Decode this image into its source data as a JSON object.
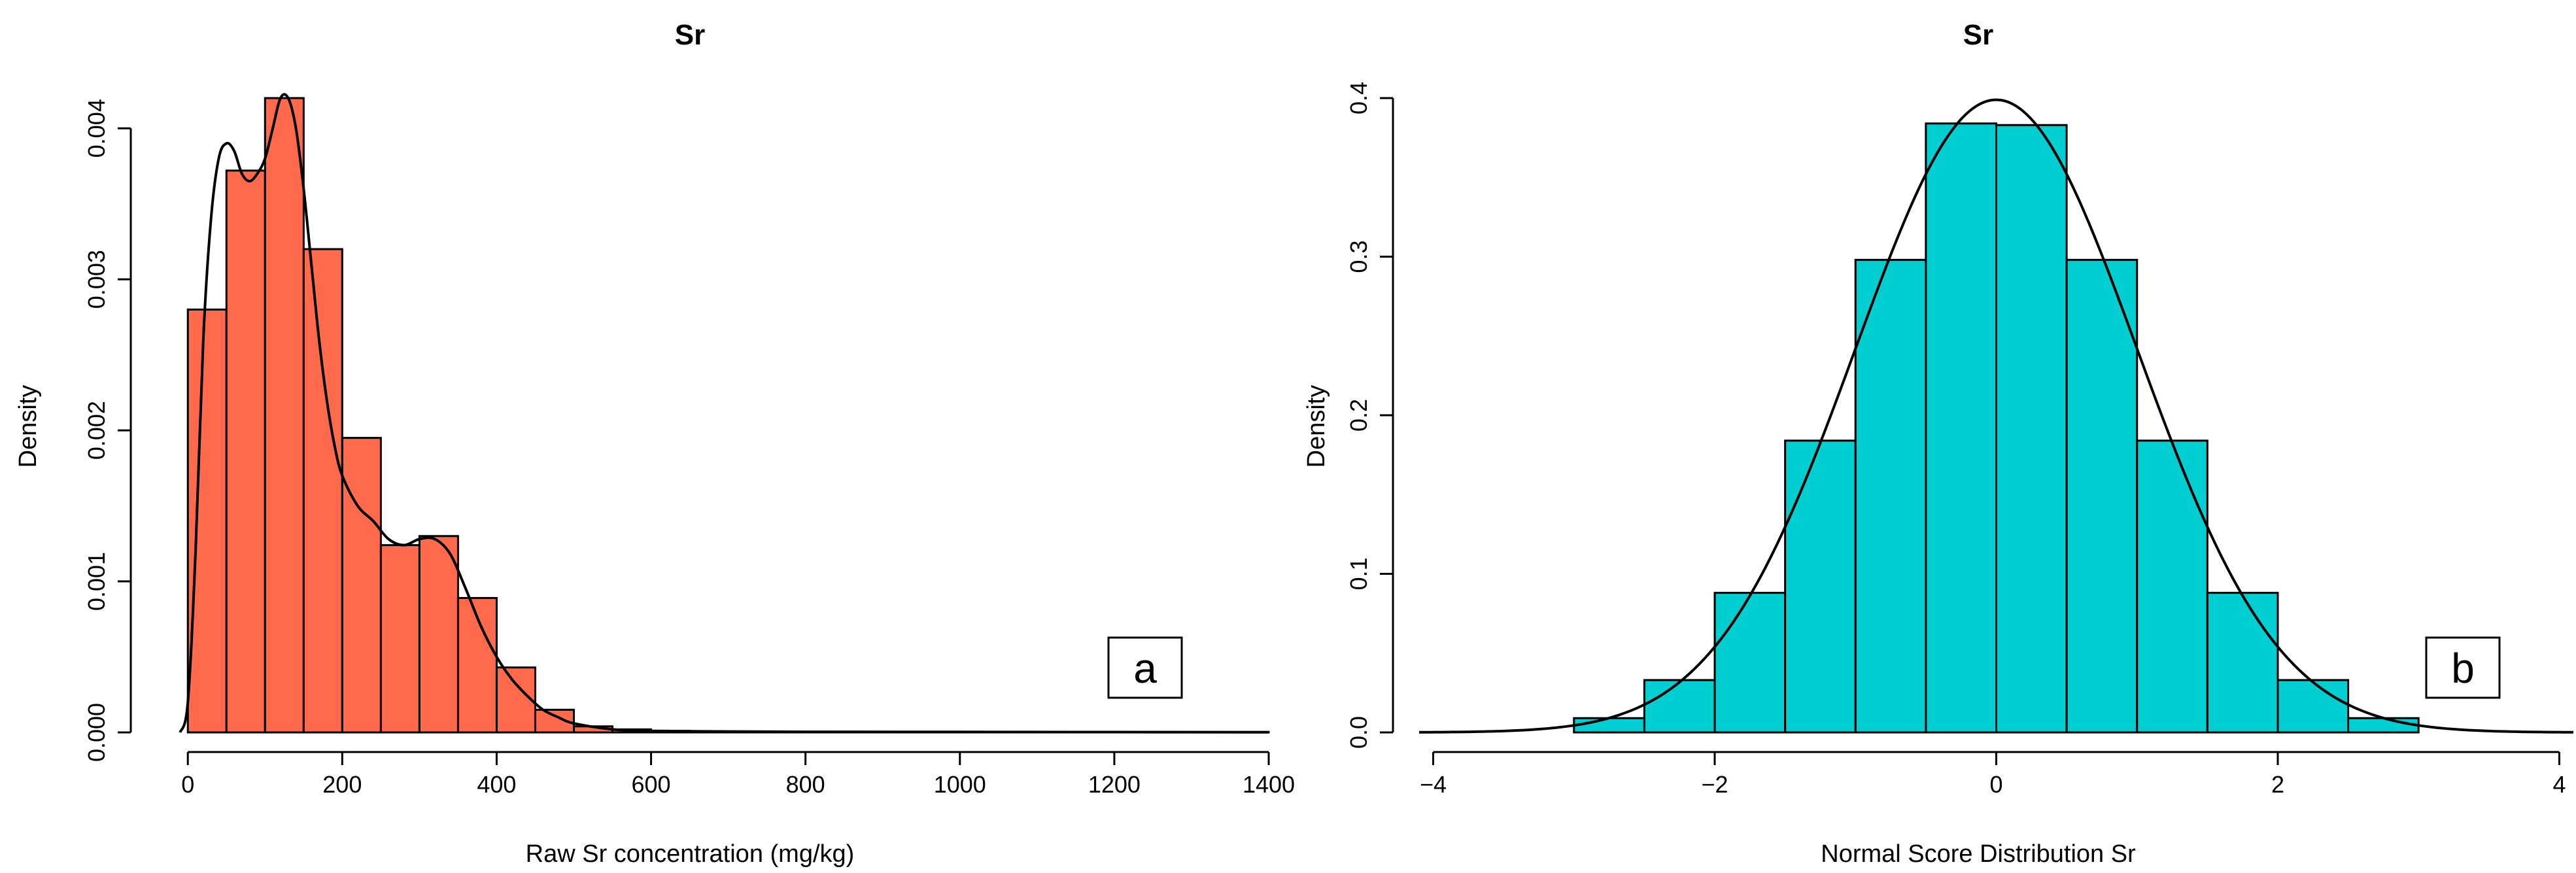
{
  "chart_data": [
    {
      "type": "bar",
      "panel_label": "a",
      "title": "Sr",
      "xlabel": "Raw Sr concentration (mg/kg)",
      "ylabel": "Density",
      "xlim": [
        -40,
        1400
      ],
      "ylim": [
        0,
        0.0042
      ],
      "xticks": [
        0,
        200,
        400,
        600,
        800,
        1000,
        1200,
        1400
      ],
      "xtick_labels": [
        "0",
        "200",
        "400",
        "600",
        "800",
        "1000",
        "1200",
        "1400"
      ],
      "yticks": [
        0,
        0.001,
        0.002,
        0.003,
        0.004
      ],
      "ytick_labels": [
        "0.000",
        "0.001",
        "0.002",
        "0.003",
        "0.004"
      ],
      "bar_color": "#FF6A4D",
      "bin_width": 50,
      "bin_starts": [
        0,
        50,
        100,
        150,
        200,
        250,
        300,
        350,
        400,
        450,
        500,
        550,
        600,
        650,
        700,
        750,
        800,
        850,
        900,
        950,
        1000,
        1050,
        1100,
        1150,
        1200,
        1250,
        1300,
        1350
      ],
      "values": [
        0.0028,
        0.00372,
        0.0042,
        0.0032,
        0.00195,
        0.00124,
        0.0013,
        0.00089,
        0.00043,
        0.00015,
        4e-05,
        2e-05,
        1e-05,
        5e-06,
        5e-06,
        3e-06,
        3e-06,
        3e-06,
        3e-06,
        3e-06,
        3e-06,
        3e-06,
        3e-06,
        3e-06,
        3e-06,
        3e-06,
        3e-06,
        3e-06
      ],
      "density_curve": {
        "x": [
          -10,
          0,
          10,
          20,
          30,
          40,
          50,
          60,
          70,
          80,
          90,
          100,
          110,
          120,
          130,
          140,
          150,
          160,
          170,
          180,
          190,
          200,
          220,
          240,
          260,
          280,
          300,
          320,
          340,
          360,
          380,
          400,
          420,
          440,
          460,
          480,
          500,
          550,
          600,
          700,
          800,
          1000,
          1200,
          1400
        ],
        "y": [
          0,
          0.0002,
          0.0012,
          0.0026,
          0.0034,
          0.0038,
          0.0039,
          0.00385,
          0.0037,
          0.00365,
          0.0037,
          0.0038,
          0.004,
          0.0042,
          0.0042,
          0.004,
          0.0036,
          0.0031,
          0.0026,
          0.0022,
          0.0019,
          0.0017,
          0.0015,
          0.0014,
          0.00128,
          0.00124,
          0.00128,
          0.00128,
          0.00118,
          0.00095,
          0.0007,
          0.0005,
          0.00035,
          0.00024,
          0.00015,
          0.0001,
          6e-05,
          2e-05,
          1e-05,
          6e-06,
          4e-06,
          3e-06,
          2e-06,
          1e-06
        ]
      }
    },
    {
      "type": "bar",
      "panel_label": "b",
      "title": "Sr",
      "xlabel": "Normal Score Distribution Sr",
      "ylabel": "Density",
      "xlim": [
        -4.1,
        4.1
      ],
      "ylim": [
        0,
        0.4
      ],
      "xticks": [
        -4,
        -2,
        0,
        2,
        4
      ],
      "xtick_labels": [
        "−4",
        "−2",
        "0",
        "2",
        "4"
      ],
      "yticks": [
        0,
        0.1,
        0.2,
        0.3,
        0.4
      ],
      "ytick_labels": [
        "0.0",
        "0.1",
        "0.2",
        "0.3",
        "0.4"
      ],
      "bar_color": "#00CED1",
      "bin_width": 0.5,
      "bin_starts": [
        -3,
        -2.5,
        -2,
        -1.5,
        -1,
        -0.5,
        0,
        0.5,
        1,
        1.5,
        2,
        2.5
      ],
      "values": [
        0.009,
        0.033,
        0.088,
        0.184,
        0.298,
        0.384,
        0.383,
        0.298,
        0.184,
        0.088,
        0.033,
        0.009
      ],
      "density_curve": {
        "distribution": "normal",
        "mean": 0,
        "sd": 1,
        "range": [
          -4.1,
          4.1
        ]
      }
    }
  ]
}
